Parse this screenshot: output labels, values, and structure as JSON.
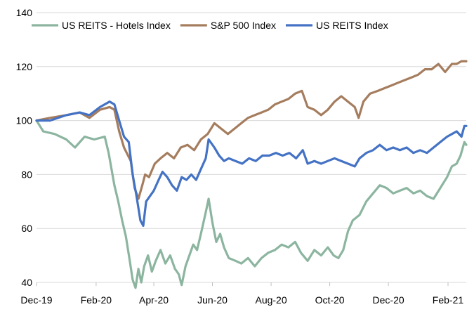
{
  "chart_data": {
    "type": "line",
    "title": "",
    "xlabel": "",
    "ylabel": "",
    "ylim": [
      40,
      140
    ],
    "yticks": [
      40,
      60,
      80,
      100,
      120,
      140
    ],
    "xlim": [
      "2019-12-01",
      "2021-02-20"
    ],
    "xticks": [
      {
        "date": "2019-12-01",
        "label": "Dec-19"
      },
      {
        "date": "2020-02-01",
        "label": "Feb-20"
      },
      {
        "date": "2020-04-01",
        "label": "Apr-20"
      },
      {
        "date": "2020-06-01",
        "label": "Jun-20"
      },
      {
        "date": "2020-08-01",
        "label": "Aug-20"
      },
      {
        "date": "2020-10-01",
        "label": "Oct-20"
      },
      {
        "date": "2020-12-01",
        "label": "Dec-20"
      },
      {
        "date": "2021-02-01",
        "label": "Feb-21"
      }
    ],
    "grid": "horizontal",
    "legend_position": "top",
    "series": [
      {
        "name": "US REITS - Hotels Index",
        "color": "#8cb5a0",
        "points": [
          [
            "2019-12-01",
            100
          ],
          [
            "2019-12-08",
            96
          ],
          [
            "2019-12-20",
            95
          ],
          [
            "2020-01-01",
            93
          ],
          [
            "2020-01-10",
            90
          ],
          [
            "2020-01-20",
            94
          ],
          [
            "2020-01-30",
            93
          ],
          [
            "2020-02-10",
            94
          ],
          [
            "2020-02-14",
            88
          ],
          [
            "2020-02-20",
            76
          ],
          [
            "2020-02-24",
            70
          ],
          [
            "2020-02-28",
            63
          ],
          [
            "2020-03-03",
            57
          ],
          [
            "2020-03-07",
            48
          ],
          [
            "2020-03-10",
            41
          ],
          [
            "2020-03-13",
            38
          ],
          [
            "2020-03-16",
            45
          ],
          [
            "2020-03-19",
            40
          ],
          [
            "2020-03-22",
            46
          ],
          [
            "2020-03-26",
            50
          ],
          [
            "2020-03-30",
            44
          ],
          [
            "2020-04-03",
            48
          ],
          [
            "2020-04-08",
            52
          ],
          [
            "2020-04-13",
            47
          ],
          [
            "2020-04-18",
            50
          ],
          [
            "2020-04-23",
            45
          ],
          [
            "2020-04-27",
            43
          ],
          [
            "2020-04-30",
            39
          ],
          [
            "2020-05-04",
            46
          ],
          [
            "2020-05-08",
            50
          ],
          [
            "2020-05-12",
            54
          ],
          [
            "2020-05-16",
            52
          ],
          [
            "2020-05-20",
            58
          ],
          [
            "2020-05-25",
            66
          ],
          [
            "2020-05-28",
            71
          ],
          [
            "2020-06-01",
            62
          ],
          [
            "2020-06-05",
            55
          ],
          [
            "2020-06-09",
            58
          ],
          [
            "2020-06-13",
            53
          ],
          [
            "2020-06-18",
            49
          ],
          [
            "2020-06-25",
            48
          ],
          [
            "2020-07-01",
            47
          ],
          [
            "2020-07-08",
            49
          ],
          [
            "2020-07-15",
            46
          ],
          [
            "2020-07-22",
            49
          ],
          [
            "2020-07-29",
            51
          ],
          [
            "2020-08-05",
            52
          ],
          [
            "2020-08-12",
            54
          ],
          [
            "2020-08-19",
            53
          ],
          [
            "2020-08-26",
            55
          ],
          [
            "2020-09-01",
            51
          ],
          [
            "2020-09-08",
            48
          ],
          [
            "2020-09-15",
            52
          ],
          [
            "2020-09-22",
            50
          ],
          [
            "2020-09-29",
            53
          ],
          [
            "2020-10-05",
            50
          ],
          [
            "2020-10-10",
            49
          ],
          [
            "2020-10-15",
            52
          ],
          [
            "2020-10-20",
            59
          ],
          [
            "2020-10-25",
            63
          ],
          [
            "2020-11-01",
            65
          ],
          [
            "2020-11-08",
            70
          ],
          [
            "2020-11-15",
            73
          ],
          [
            "2020-11-22",
            76
          ],
          [
            "2020-11-29",
            75
          ],
          [
            "2020-12-06",
            73
          ],
          [
            "2020-12-13",
            74
          ],
          [
            "2020-12-20",
            75
          ],
          [
            "2020-12-27",
            73
          ],
          [
            "2021-01-03",
            74
          ],
          [
            "2021-01-10",
            72
          ],
          [
            "2021-01-17",
            71
          ],
          [
            "2021-01-24",
            75
          ],
          [
            "2021-01-31",
            79
          ],
          [
            "2021-02-05",
            83
          ],
          [
            "2021-02-10",
            84
          ],
          [
            "2021-02-14",
            87
          ],
          [
            "2021-02-18",
            92
          ],
          [
            "2021-02-20",
            91
          ]
        ]
      },
      {
        "name": "S&P 500 Index",
        "color": "#a57d5e",
        "points": [
          [
            "2019-12-01",
            100
          ],
          [
            "2019-12-15",
            101
          ],
          [
            "2020-01-01",
            102
          ],
          [
            "2020-01-15",
            103
          ],
          [
            "2020-01-25",
            101
          ],
          [
            "2020-02-05",
            104
          ],
          [
            "2020-02-15",
            105
          ],
          [
            "2020-02-20",
            104
          ],
          [
            "2020-02-25",
            96
          ],
          [
            "2020-03-01",
            90
          ],
          [
            "2020-03-08",
            85
          ],
          [
            "2020-03-12",
            75
          ],
          [
            "2020-03-16",
            71
          ],
          [
            "2020-03-20",
            76
          ],
          [
            "2020-03-23",
            80
          ],
          [
            "2020-03-27",
            79
          ],
          [
            "2020-04-02",
            84
          ],
          [
            "2020-04-08",
            86
          ],
          [
            "2020-04-15",
            88
          ],
          [
            "2020-04-22",
            86
          ],
          [
            "2020-04-29",
            90
          ],
          [
            "2020-05-06",
            91
          ],
          [
            "2020-05-13",
            89
          ],
          [
            "2020-05-20",
            93
          ],
          [
            "2020-05-27",
            95
          ],
          [
            "2020-06-03",
            99
          ],
          [
            "2020-06-10",
            97
          ],
          [
            "2020-06-17",
            95
          ],
          [
            "2020-06-24",
            97
          ],
          [
            "2020-07-01",
            99
          ],
          [
            "2020-07-08",
            101
          ],
          [
            "2020-07-15",
            102
          ],
          [
            "2020-07-22",
            103
          ],
          [
            "2020-07-29",
            104
          ],
          [
            "2020-08-05",
            106
          ],
          [
            "2020-08-12",
            107
          ],
          [
            "2020-08-19",
            108
          ],
          [
            "2020-08-26",
            110
          ],
          [
            "2020-09-02",
            111
          ],
          [
            "2020-09-08",
            105
          ],
          [
            "2020-09-15",
            104
          ],
          [
            "2020-09-22",
            102
          ],
          [
            "2020-09-29",
            104
          ],
          [
            "2020-10-06",
            107
          ],
          [
            "2020-10-13",
            109
          ],
          [
            "2020-10-20",
            107
          ],
          [
            "2020-10-27",
            105
          ],
          [
            "2020-10-31",
            101
          ],
          [
            "2020-11-05",
            107
          ],
          [
            "2020-11-12",
            110
          ],
          [
            "2020-11-20",
            111
          ],
          [
            "2020-11-27",
            112
          ],
          [
            "2020-12-04",
            113
          ],
          [
            "2020-12-11",
            114
          ],
          [
            "2020-12-18",
            115
          ],
          [
            "2020-12-25",
            116
          ],
          [
            "2021-01-01",
            117
          ],
          [
            "2021-01-08",
            119
          ],
          [
            "2021-01-15",
            119
          ],
          [
            "2021-01-22",
            121
          ],
          [
            "2021-01-29",
            118
          ],
          [
            "2021-02-05",
            121
          ],
          [
            "2021-02-10",
            121
          ],
          [
            "2021-02-15",
            122
          ],
          [
            "2021-02-20",
            122
          ]
        ]
      },
      {
        "name": "US REITS Index",
        "color": "#4472c4",
        "points": [
          [
            "2019-12-01",
            100
          ],
          [
            "2019-12-15",
            100
          ],
          [
            "2020-01-01",
            102
          ],
          [
            "2020-01-15",
            103
          ],
          [
            "2020-01-25",
            102
          ],
          [
            "2020-02-05",
            105
          ],
          [
            "2020-02-15",
            107
          ],
          [
            "2020-02-20",
            106
          ],
          [
            "2020-02-25",
            100
          ],
          [
            "2020-03-01",
            94
          ],
          [
            "2020-03-06",
            92
          ],
          [
            "2020-03-10",
            80
          ],
          [
            "2020-03-14",
            72
          ],
          [
            "2020-03-18",
            63
          ],
          [
            "2020-03-21",
            61
          ],
          [
            "2020-03-24",
            70
          ],
          [
            "2020-03-28",
            72
          ],
          [
            "2020-04-01",
            74
          ],
          [
            "2020-04-06",
            78
          ],
          [
            "2020-04-10",
            81
          ],
          [
            "2020-04-15",
            79
          ],
          [
            "2020-04-20",
            76
          ],
          [
            "2020-04-25",
            74
          ],
          [
            "2020-04-30",
            79
          ],
          [
            "2020-05-05",
            78
          ],
          [
            "2020-05-10",
            80
          ],
          [
            "2020-05-15",
            78
          ],
          [
            "2020-05-20",
            82
          ],
          [
            "2020-05-25",
            86
          ],
          [
            "2020-05-28",
            93
          ],
          [
            "2020-06-03",
            90
          ],
          [
            "2020-06-08",
            87
          ],
          [
            "2020-06-13",
            85
          ],
          [
            "2020-06-18",
            86
          ],
          [
            "2020-06-25",
            85
          ],
          [
            "2020-07-02",
            84
          ],
          [
            "2020-07-09",
            86
          ],
          [
            "2020-07-16",
            85
          ],
          [
            "2020-07-23",
            87
          ],
          [
            "2020-07-30",
            87
          ],
          [
            "2020-08-06",
            88
          ],
          [
            "2020-08-13",
            87
          ],
          [
            "2020-08-20",
            88
          ],
          [
            "2020-08-27",
            86
          ],
          [
            "2020-09-03",
            89
          ],
          [
            "2020-09-08",
            84
          ],
          [
            "2020-09-15",
            85
          ],
          [
            "2020-09-22",
            84
          ],
          [
            "2020-09-29",
            85
          ],
          [
            "2020-10-06",
            86
          ],
          [
            "2020-10-13",
            85
          ],
          [
            "2020-10-20",
            84
          ],
          [
            "2020-10-27",
            83
          ],
          [
            "2020-11-01",
            86
          ],
          [
            "2020-11-08",
            88
          ],
          [
            "2020-11-15",
            89
          ],
          [
            "2020-11-22",
            91
          ],
          [
            "2020-11-29",
            89
          ],
          [
            "2020-12-06",
            90
          ],
          [
            "2020-12-13",
            89
          ],
          [
            "2020-12-20",
            90
          ],
          [
            "2020-12-27",
            88
          ],
          [
            "2021-01-03",
            89
          ],
          [
            "2021-01-10",
            88
          ],
          [
            "2021-01-17",
            90
          ],
          [
            "2021-01-24",
            92
          ],
          [
            "2021-01-31",
            94
          ],
          [
            "2021-02-05",
            95
          ],
          [
            "2021-02-10",
            96
          ],
          [
            "2021-02-15",
            94
          ],
          [
            "2021-02-18",
            98
          ],
          [
            "2021-02-20",
            98
          ]
        ]
      }
    ]
  }
}
